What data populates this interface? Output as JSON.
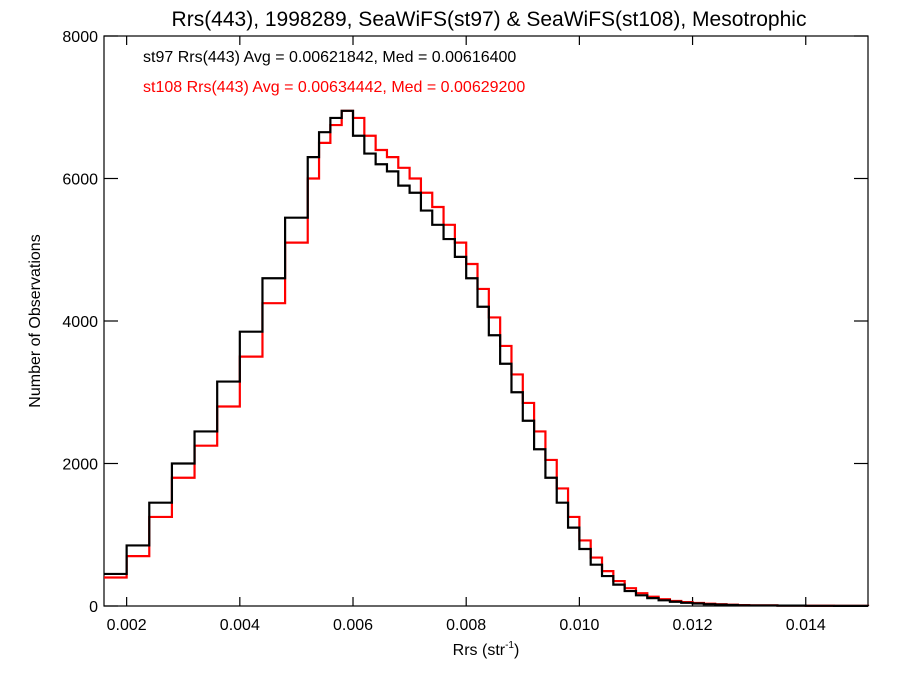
{
  "chart_data": {
    "type": "line",
    "title": "Rrs(443), 1998289, SeaWiFS(st97) & SeaWiFS(st108), Mesotrophic",
    "xlabel_main": "Rrs (str",
    "xlabel_sup": "-1",
    "xlabel_end": ")",
    "ylabel": "Number of Observations",
    "xlim": [
      0.0016,
      0.0151
    ],
    "ylim": [
      0,
      8000
    ],
    "x_ticks": [
      0.002,
      0.004,
      0.006,
      0.008,
      0.01,
      0.012,
      0.014
    ],
    "x_tick_labels": [
      "0.002",
      "0.004",
      "0.006",
      "0.008",
      "0.010",
      "0.012",
      "0.014"
    ],
    "y_ticks": [
      0,
      2000,
      4000,
      6000,
      8000
    ],
    "y_tick_labels": [
      "0",
      "2000",
      "4000",
      "6000",
      "8000"
    ],
    "grid": false,
    "legend_position": "top-left",
    "series": [
      {
        "name": "st97",
        "annotation": "st97 Rrs(443) Avg = 0.00621842, Med = 0.00616400",
        "color": "#000000",
        "x": [
          0.0016,
          0.002,
          0.0024,
          0.0028,
          0.0032,
          0.0036,
          0.004,
          0.0044,
          0.0048,
          0.0052,
          0.0054,
          0.0056,
          0.0058,
          0.006,
          0.0062,
          0.0064,
          0.0066,
          0.0068,
          0.007,
          0.0072,
          0.0074,
          0.0076,
          0.0078,
          0.008,
          0.0082,
          0.0084,
          0.0086,
          0.0088,
          0.009,
          0.0092,
          0.0094,
          0.0096,
          0.0098,
          0.01,
          0.0102,
          0.0104,
          0.0106,
          0.0108,
          0.011,
          0.0112,
          0.0114,
          0.0116,
          0.0118,
          0.012,
          0.0122,
          0.0124,
          0.0126,
          0.0128,
          0.013,
          0.0135,
          0.014,
          0.0145,
          0.0151
        ],
        "y": [
          450,
          850,
          1450,
          2000,
          2450,
          3150,
          3850,
          4600,
          5450,
          6300,
          6650,
          6850,
          6950,
          6600,
          6350,
          6200,
          6100,
          5900,
          5800,
          5550,
          5350,
          5150,
          4900,
          4600,
          4200,
          3800,
          3400,
          3000,
          2600,
          2200,
          1800,
          1450,
          1100,
          800,
          580,
          420,
          300,
          210,
          150,
          110,
          80,
          60,
          45,
          35,
          25,
          20,
          15,
          10,
          8,
          5,
          3,
          2,
          1
        ]
      },
      {
        "name": "st108",
        "annotation": "st108 Rrs(443) Avg = 0.00634442, Med = 0.00629200",
        "color": "#ff0000",
        "x": [
          0.0016,
          0.002,
          0.0024,
          0.0028,
          0.0032,
          0.0036,
          0.004,
          0.0044,
          0.0048,
          0.0052,
          0.0054,
          0.0056,
          0.0058,
          0.006,
          0.0062,
          0.0064,
          0.0066,
          0.0068,
          0.007,
          0.0072,
          0.0074,
          0.0076,
          0.0078,
          0.008,
          0.0082,
          0.0084,
          0.0086,
          0.0088,
          0.009,
          0.0092,
          0.0094,
          0.0096,
          0.0098,
          0.01,
          0.0102,
          0.0104,
          0.0106,
          0.0108,
          0.011,
          0.0112,
          0.0114,
          0.0116,
          0.0118,
          0.012,
          0.0122,
          0.0124,
          0.0126,
          0.0128,
          0.013,
          0.0135,
          0.014,
          0.0145,
          0.0151
        ],
        "y": [
          400,
          700,
          1250,
          1800,
          2250,
          2800,
          3500,
          4250,
          5100,
          6000,
          6500,
          6750,
          6950,
          6850,
          6600,
          6400,
          6300,
          6150,
          6000,
          5800,
          5600,
          5350,
          5100,
          4800,
          4450,
          4050,
          3650,
          3250,
          2850,
          2450,
          2050,
          1650,
          1250,
          920,
          680,
          490,
          350,
          250,
          180,
          130,
          95,
          70,
          55,
          42,
          32,
          25,
          18,
          13,
          10,
          6,
          4,
          2,
          1
        ]
      }
    ]
  }
}
